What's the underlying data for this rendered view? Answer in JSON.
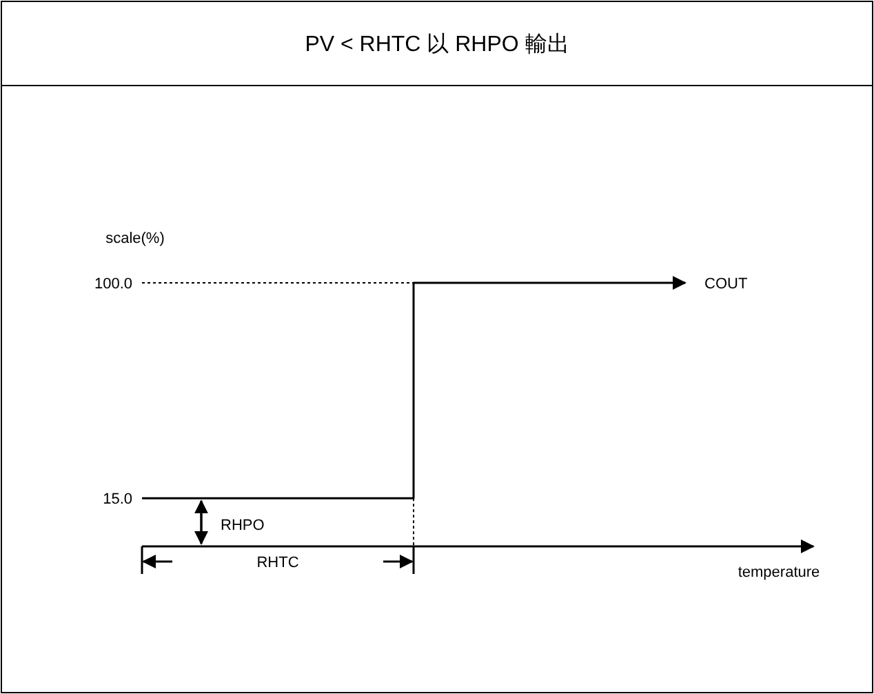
{
  "chart_data": {
    "type": "step",
    "title": "PV < RHTC 以 RHPO 輸出",
    "ylabel": "scale(%)",
    "categories": [
      null,
      null,
      null
    ],
    "series": [
      {
        "name": "COUT",
        "color": "#000000",
        "values": [
          15,
          100,
          100
        ]
      }
    ],
    "ylim": [
      -4,
      100
    ],
    "yticks": [
      {
        "value": 15,
        "label": "15.0"
      },
      {
        "value": 100,
        "label": "100.0"
      }
    ],
    "ref_lines": [
      {
        "axis": "y",
        "value": 100,
        "line_style": "dotted",
        "color": "#000000"
      }
    ],
    "annotations": [
      "RHPO",
      "RHTC",
      "temperature"
    ],
    "tick_labels": "y",
    "grid": false,
    "legend": "right",
    "marker": "none"
  }
}
